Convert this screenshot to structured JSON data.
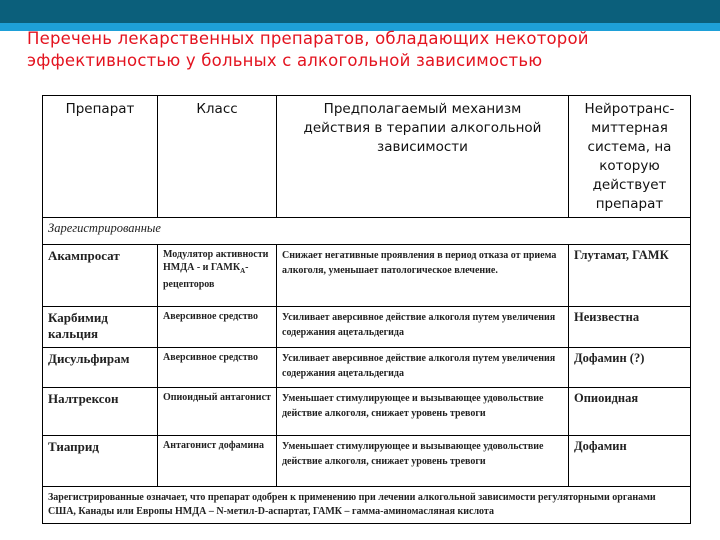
{
  "slide": {
    "title_line1": "Перечень лекарственных препаратов, обладающих некоторой",
    "title_line2": "эффективностью у больных с алкогольной зависимостью",
    "colors": {
      "title": "#e3131f",
      "header_bar": "#0b5f7b",
      "header_strip": "#1ea0d8"
    }
  },
  "table": {
    "headers": [
      "Препарат",
      "Класс",
      "Предполагаемый механизм действия в терапии алкогольной зависимости",
      "Нейротранс-миттерная система, на которую действует препарат"
    ],
    "section": "Зарегистрированные",
    "rows": [
      {
        "drug": "Акампросат",
        "class": "Модулятор активности НМДА - и ГАМКА-рецепторов",
        "mechanism": "Снижает негативные проявления в период отказа от приема алкоголя, уменьшает патологическое влечение.",
        "system": "Глутамат, ГАМК"
      },
      {
        "drug": "Карбимид кальция",
        "class": "Аверсивное средство",
        "mechanism": "Усиливает аверсивное действие алкоголя путем увеличения содержания ацетальдегида",
        "system": "Неизвестна"
      },
      {
        "drug": "Дисульфирам",
        "class": "Аверсивное средство",
        "mechanism": "Усиливает аверсивное действие алкоголя путем увеличения содержания ацетальдегида",
        "system": "Дофамин (?)"
      },
      {
        "drug": "Налтрексон",
        "class": "Опиоидный антагонист",
        "mechanism": "Уменьшает стимулирующее и вызывающее удовольствие действие алкоголя, снижает уровень тревоги",
        "system": "Опиоидная"
      },
      {
        "drug": "Тиаприд",
        "class": "Антагонист дофамина",
        "mechanism": "Уменьшает стимулирующее и вызывающее удовольствие действие алкоголя, снижает уровень тревоги",
        "system": "Дофамин"
      }
    ],
    "footnote": "Зарегистрированные означает, что препарат одобрен к применению при лечении алкогольной зависимости регуляторными органами США, Канады или Европы НМДА – N-метил-D-аспартат, ГАМК – гамма-аминомасляная кислота"
  }
}
